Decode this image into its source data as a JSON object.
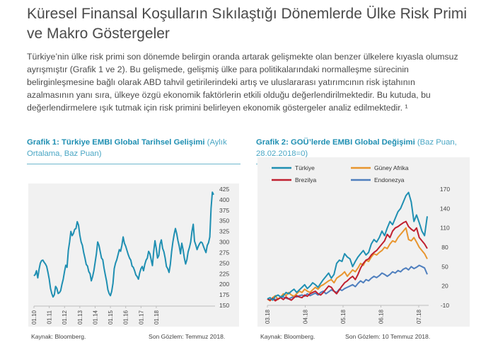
{
  "title": "Küresel Finansal Koşulların Sıkılaştığı Dönemlerde Ülke Risk Primi ve Makro Göstergeler",
  "paragraph": "Türkiye’nin ülke risk primi son dönemde belirgin oranda artarak gelişmekte olan benzer ülkelere kıyasla olumsuz ayrışmıştır (Grafik 1 ve 2). Bu gelişmede, gelişmiş ülke para politikalarındaki normalleşme sürecinin belirginleşmesine bağlı olarak ABD tahvil getirilerindeki artış ve uluslararası yatırımcının risk iştahının azalmasının yanı sıra, ülkeye özgü ekonomik faktörlerin etkili olduğu değerlendirilmektedir. Bu kutuda, bu değerlendirmelere ışık tutmak için risk primini belirleyen ekonomik göstergeler analiz edilmektedir. ¹",
  "figures": {
    "fig1": {
      "title_lead": "Grafik 1: Türkiye EMBI Global Tarihsel Gelişimi",
      "title_rest": " (Aylık Ortalama, Baz Puan)",
      "source": "Kaynak: Bloomberg.",
      "last_obs": "Son Gözlem: Temmuz 2018."
    },
    "fig2": {
      "title_lead": "Grafik 2: GOÜ’lerde EMBI Global Değişimi",
      "title_rest": " (Baz Puan, 28.02.2018=0)",
      "source": "Kaynak: Bloomberg.",
      "last_obs": "Son Gözlem: 10 Temmuz 2018."
    }
  },
  "colors": {
    "turkiye": "#1f8fb2",
    "guney_afrika": "#e8952e",
    "brezilya": "#c0202f",
    "endonezya": "#4f7fbe"
  },
  "chart_data": [
    {
      "type": "line",
      "title": "Grafik 1: Türkiye EMBI Global Tarihsel Gelişimi (Aylık Ortalama, Baz Puan)",
      "xlabel": "",
      "ylabel": "",
      "ylim": [
        150,
        425
      ],
      "yticks": [
        425,
        400,
        375,
        350,
        325,
        300,
        275,
        250,
        225,
        200,
        175,
        150
      ],
      "xticks": [
        "01.10",
        "01.11",
        "01.12",
        "01.13",
        "01.14",
        "01.15",
        "01.16",
        "01.17",
        "01.18"
      ],
      "x_start": "2010-01",
      "grid": false,
      "series": [
        {
          "name": "Türkiye",
          "values": [
            220,
            223,
            232,
            215,
            235,
            250,
            256,
            257,
            252,
            248,
            242,
            228,
            212,
            190,
            178,
            170,
            175,
            195,
            190,
            178,
            180,
            185,
            200,
            212,
            230,
            245,
            240,
            280,
            300,
            325,
            315,
            320,
            330,
            332,
            348,
            340,
            316,
            300,
            292,
            275,
            262,
            247,
            243,
            230,
            225,
            208,
            218,
            232,
            252,
            272,
            300,
            292,
            277,
            262,
            258,
            238,
            222,
            207,
            187,
            178,
            173,
            183,
            202,
            237,
            250,
            258,
            270,
            282,
            278,
            292,
            312,
            297,
            290,
            280,
            270,
            262,
            257,
            243,
            240,
            232,
            222,
            218,
            212,
            227,
            237,
            242,
            232,
            247,
            257,
            262,
            278,
            272,
            258,
            244,
            278,
            303,
            285,
            262,
            268,
            295,
            305,
            285,
            277,
            262,
            242,
            237,
            228,
            247,
            277,
            300,
            318,
            332,
            320,
            303,
            290,
            272,
            297,
            282,
            262,
            248,
            258,
            277,
            287,
            300,
            325,
            342,
            302,
            293,
            282,
            290,
            296,
            300,
            298,
            290,
            282,
            275,
            292,
            298,
            312,
            380,
            418,
            412
          ]
        }
      ]
    },
    {
      "type": "line",
      "title": "Grafik 2: GOÜ’lerde EMBI Global Değişimi (Baz Puan, 28.02.2018=0)",
      "xlabel": "",
      "ylabel": "",
      "ylim": [
        -10,
        170
      ],
      "yticks": [
        170,
        140,
        110,
        80,
        50,
        20,
        -10
      ],
      "xticks": [
        "03.18",
        "04.18",
        "05.18",
        "06.18",
        "07.18"
      ],
      "x_start": "2018-02-28",
      "x_end": "2018-07-10",
      "legend": "top",
      "grid": false,
      "series": [
        {
          "name": "Türkiye",
          "values": [
            0,
            2,
            -2,
            4,
            6,
            3,
            5,
            10,
            8,
            12,
            15,
            10,
            14,
            18,
            22,
            16,
            20,
            25,
            22,
            18,
            24,
            30,
            35,
            40,
            32,
            38,
            55,
            60,
            58,
            70,
            65,
            62,
            50,
            58,
            65,
            70,
            75,
            68,
            72,
            85,
            92,
            88,
            95,
            105,
            98,
            110,
            120,
            115,
            125,
            135,
            140,
            150,
            160,
            165,
            150,
            120,
            130,
            118,
            105,
            98,
            128
          ]
        },
        {
          "name": "Güney Afrika",
          "values": [
            0,
            -3,
            2,
            5,
            -1,
            3,
            8,
            5,
            10,
            6,
            4,
            8,
            12,
            10,
            15,
            12,
            10,
            14,
            18,
            15,
            20,
            22,
            25,
            28,
            30,
            25,
            32,
            35,
            38,
            42,
            35,
            40,
            45,
            42,
            48,
            55,
            52,
            60,
            58,
            65,
            70,
            68,
            72,
            75,
            80,
            78,
            85,
            90,
            88,
            95,
            100,
            105,
            110,
            92,
            90,
            95,
            88,
            80,
            75,
            70,
            62
          ]
        },
        {
          "name": "Brezilya",
          "values": [
            0,
            -2,
            1,
            -3,
            0,
            2,
            -1,
            3,
            0,
            -2,
            2,
            5,
            3,
            2,
            6,
            4,
            8,
            10,
            12,
            8,
            6,
            10,
            15,
            20,
            18,
            12,
            8,
            14,
            20,
            25,
            28,
            32,
            35,
            30,
            38,
            48,
            55,
            60,
            62,
            68,
            72,
            75,
            80,
            85,
            90,
            100,
            95,
            105,
            110,
            112,
            115,
            118,
            120,
            112,
            108,
            105,
            110,
            95,
            90,
            85,
            78
          ]
        },
        {
          "name": "Endonezya",
          "values": [
            0,
            -2,
            1,
            -1,
            0,
            2,
            3,
            1,
            0,
            2,
            4,
            3,
            5,
            6,
            4,
            8,
            5,
            7,
            9,
            6,
            10,
            12,
            8,
            11,
            14,
            12,
            10,
            15,
            13,
            16,
            18,
            20,
            22,
            19,
            24,
            28,
            25,
            30,
            28,
            32,
            35,
            33,
            36,
            40,
            38,
            35,
            38,
            42,
            40,
            44,
            42,
            46,
            48,
            45,
            50,
            47,
            49,
            52,
            50,
            48,
            38
          ]
        }
      ]
    }
  ]
}
